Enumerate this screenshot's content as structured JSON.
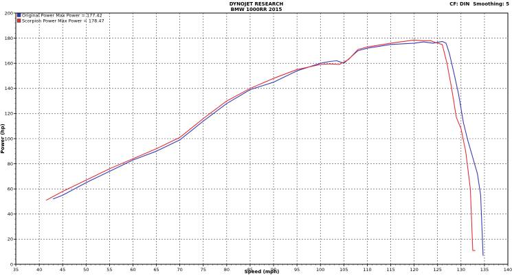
{
  "header": {
    "title": "DYNOJET RESEARCH",
    "subtitle": "BMW 1000RR 2015",
    "settings": "CF: DIN  Smoothing: 5"
  },
  "colors": {
    "original": "#3a3ab8",
    "scorpion": "#e0303a",
    "grid": "#444444",
    "frame": "#000000"
  },
  "chart_data": {
    "type": "line",
    "title": "DYNOJET RESEARCH",
    "subtitle": "BMW 1000RR 2015",
    "xlabel": "Speed (mph)",
    "ylabel": "Power (hp)",
    "xlim": [
      35,
      140
    ],
    "ylim": [
      0,
      200
    ],
    "xticks": [
      35,
      40,
      45,
      50,
      55,
      60,
      65,
      70,
      75,
      80,
      85,
      90,
      95,
      100,
      105,
      110,
      115,
      120,
      125,
      130,
      135,
      140
    ],
    "yticks": [
      0,
      20,
      40,
      60,
      80,
      100,
      120,
      140,
      160,
      180,
      200
    ],
    "grid": true,
    "legend_position": "top-left",
    "series": [
      {
        "name": "Original Power Max Power = 177.42",
        "color": "#3a3ab8",
        "x": [
          43,
          45,
          50,
          55,
          60,
          65,
          70,
          75,
          80,
          85,
          90,
          95,
          100,
          102,
          103.5,
          105,
          108,
          110,
          115,
          120,
          122,
          124,
          126,
          126.8,
          127.5,
          128.5,
          129.5,
          130.5,
          131.5,
          132.5,
          133.5,
          134.2,
          134.7
        ],
        "y": [
          52,
          55,
          65,
          74,
          83,
          90,
          99,
          114,
          128,
          139,
          145,
          154,
          160,
          161.5,
          162,
          160,
          170,
          172,
          175,
          176,
          177,
          176,
          177.4,
          176,
          168,
          152,
          135,
          113,
          98,
          85,
          72,
          55,
          7
        ]
      },
      {
        "name": "Scorpion Power Max Power = 178.47",
        "color": "#e0303a",
        "x": [
          41.5,
          42.5,
          45,
          50,
          55,
          60,
          65,
          70,
          75,
          80,
          85,
          90,
          95,
          100,
          102,
          104,
          106,
          108,
          110,
          115,
          120,
          122,
          123.5,
          125,
          126,
          127,
          128,
          129,
          130,
          131,
          132,
          132.5,
          133
        ],
        "y": [
          51,
          53,
          58,
          67,
          76,
          84,
          92,
          101,
          116,
          130,
          140,
          148,
          155,
          159,
          159.5,
          159,
          163,
          171,
          173,
          176,
          178.5,
          178,
          178,
          176,
          175,
          160,
          140,
          117,
          108,
          90,
          60,
          11,
          11
        ]
      }
    ]
  }
}
